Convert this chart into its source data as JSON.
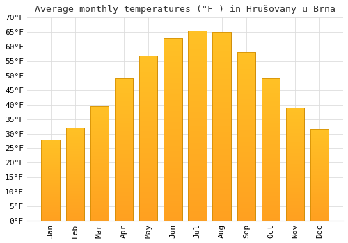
{
  "title": "Average monthly temperatures (°F ) in Hrušovany u Brna",
  "months": [
    "Jan",
    "Feb",
    "Mar",
    "Apr",
    "May",
    "Jun",
    "Jul",
    "Aug",
    "Sep",
    "Oct",
    "Nov",
    "Dec"
  ],
  "values": [
    28,
    32,
    39.5,
    49,
    57,
    63,
    65.5,
    65,
    58,
    49,
    39,
    31.5
  ],
  "bar_color_top": "#FFC125",
  "bar_color_bottom": "#FFA020",
  "bar_edge_color": "#CC8800",
  "background_color": "#FFFFFF",
  "plot_bg_color": "#FFFFFF",
  "grid_color": "#DDDDDD",
  "ylim": [
    0,
    70
  ],
  "yticks": [
    0,
    5,
    10,
    15,
    20,
    25,
    30,
    35,
    40,
    45,
    50,
    55,
    60,
    65,
    70
  ],
  "ylabel_suffix": "°F",
  "title_fontsize": 9.5,
  "tick_fontsize": 8,
  "font_family": "monospace"
}
